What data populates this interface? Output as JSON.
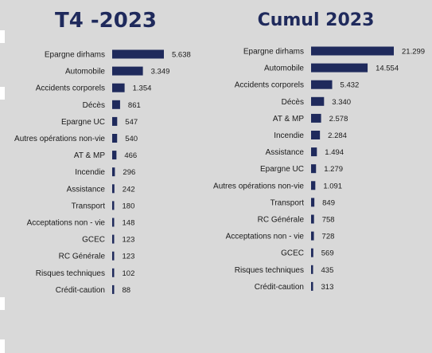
{
  "chart_data": [
    {
      "type": "bar",
      "orientation": "horizontal",
      "title": "T4 -2023",
      "categories": [
        "Epargne dirhams",
        "Automobile",
        "Accidents corporels",
        "Décès",
        "Epargne UC",
        "Autres opérations non-vie",
        "AT & MP",
        "Incendie",
        "Assistance",
        "Transport",
        "Acceptations non - vie",
        "GCEC",
        "RC Générale",
        "Risques techniques",
        "Crédit-caution"
      ],
      "values": [
        5638,
        3349,
        1354,
        861,
        547,
        540,
        466,
        296,
        242,
        180,
        148,
        123,
        123,
        102,
        88
      ],
      "value_labels": [
        "5.638",
        "3.349",
        "1.354",
        "861",
        "547",
        "540",
        "466",
        "296",
        "242",
        "180",
        "148",
        "123",
        "123",
        "102",
        "88"
      ],
      "bar_color": "#1f2a5c",
      "grid": false,
      "legend": "none"
    },
    {
      "type": "bar",
      "orientation": "horizontal",
      "title": "Cumul 2023",
      "categories": [
        "Epargne dirhams",
        "Automobile",
        "Accidents corporels",
        "Décès",
        "AT & MP",
        "Incendie",
        "Assistance",
        "Epargne UC",
        "Autres opérations non-vie",
        "Transport",
        "RC Générale",
        "Acceptations non - vie",
        "GCEC",
        "Risques techniques",
        "Crédit-caution"
      ],
      "values": [
        21299,
        14554,
        5432,
        3340,
        2578,
        2284,
        1494,
        1279,
        1091,
        849,
        758,
        728,
        569,
        435,
        313
      ],
      "value_labels": [
        "21.299",
        "14.554",
        "5.432",
        "3.340",
        "2.578",
        "2.284",
        "1.494",
        "1.279",
        "1.091",
        "849",
        "758",
        "728",
        "569",
        "435",
        "313"
      ],
      "bar_color": "#1f2a5c",
      "grid": false,
      "legend": "none"
    }
  ]
}
